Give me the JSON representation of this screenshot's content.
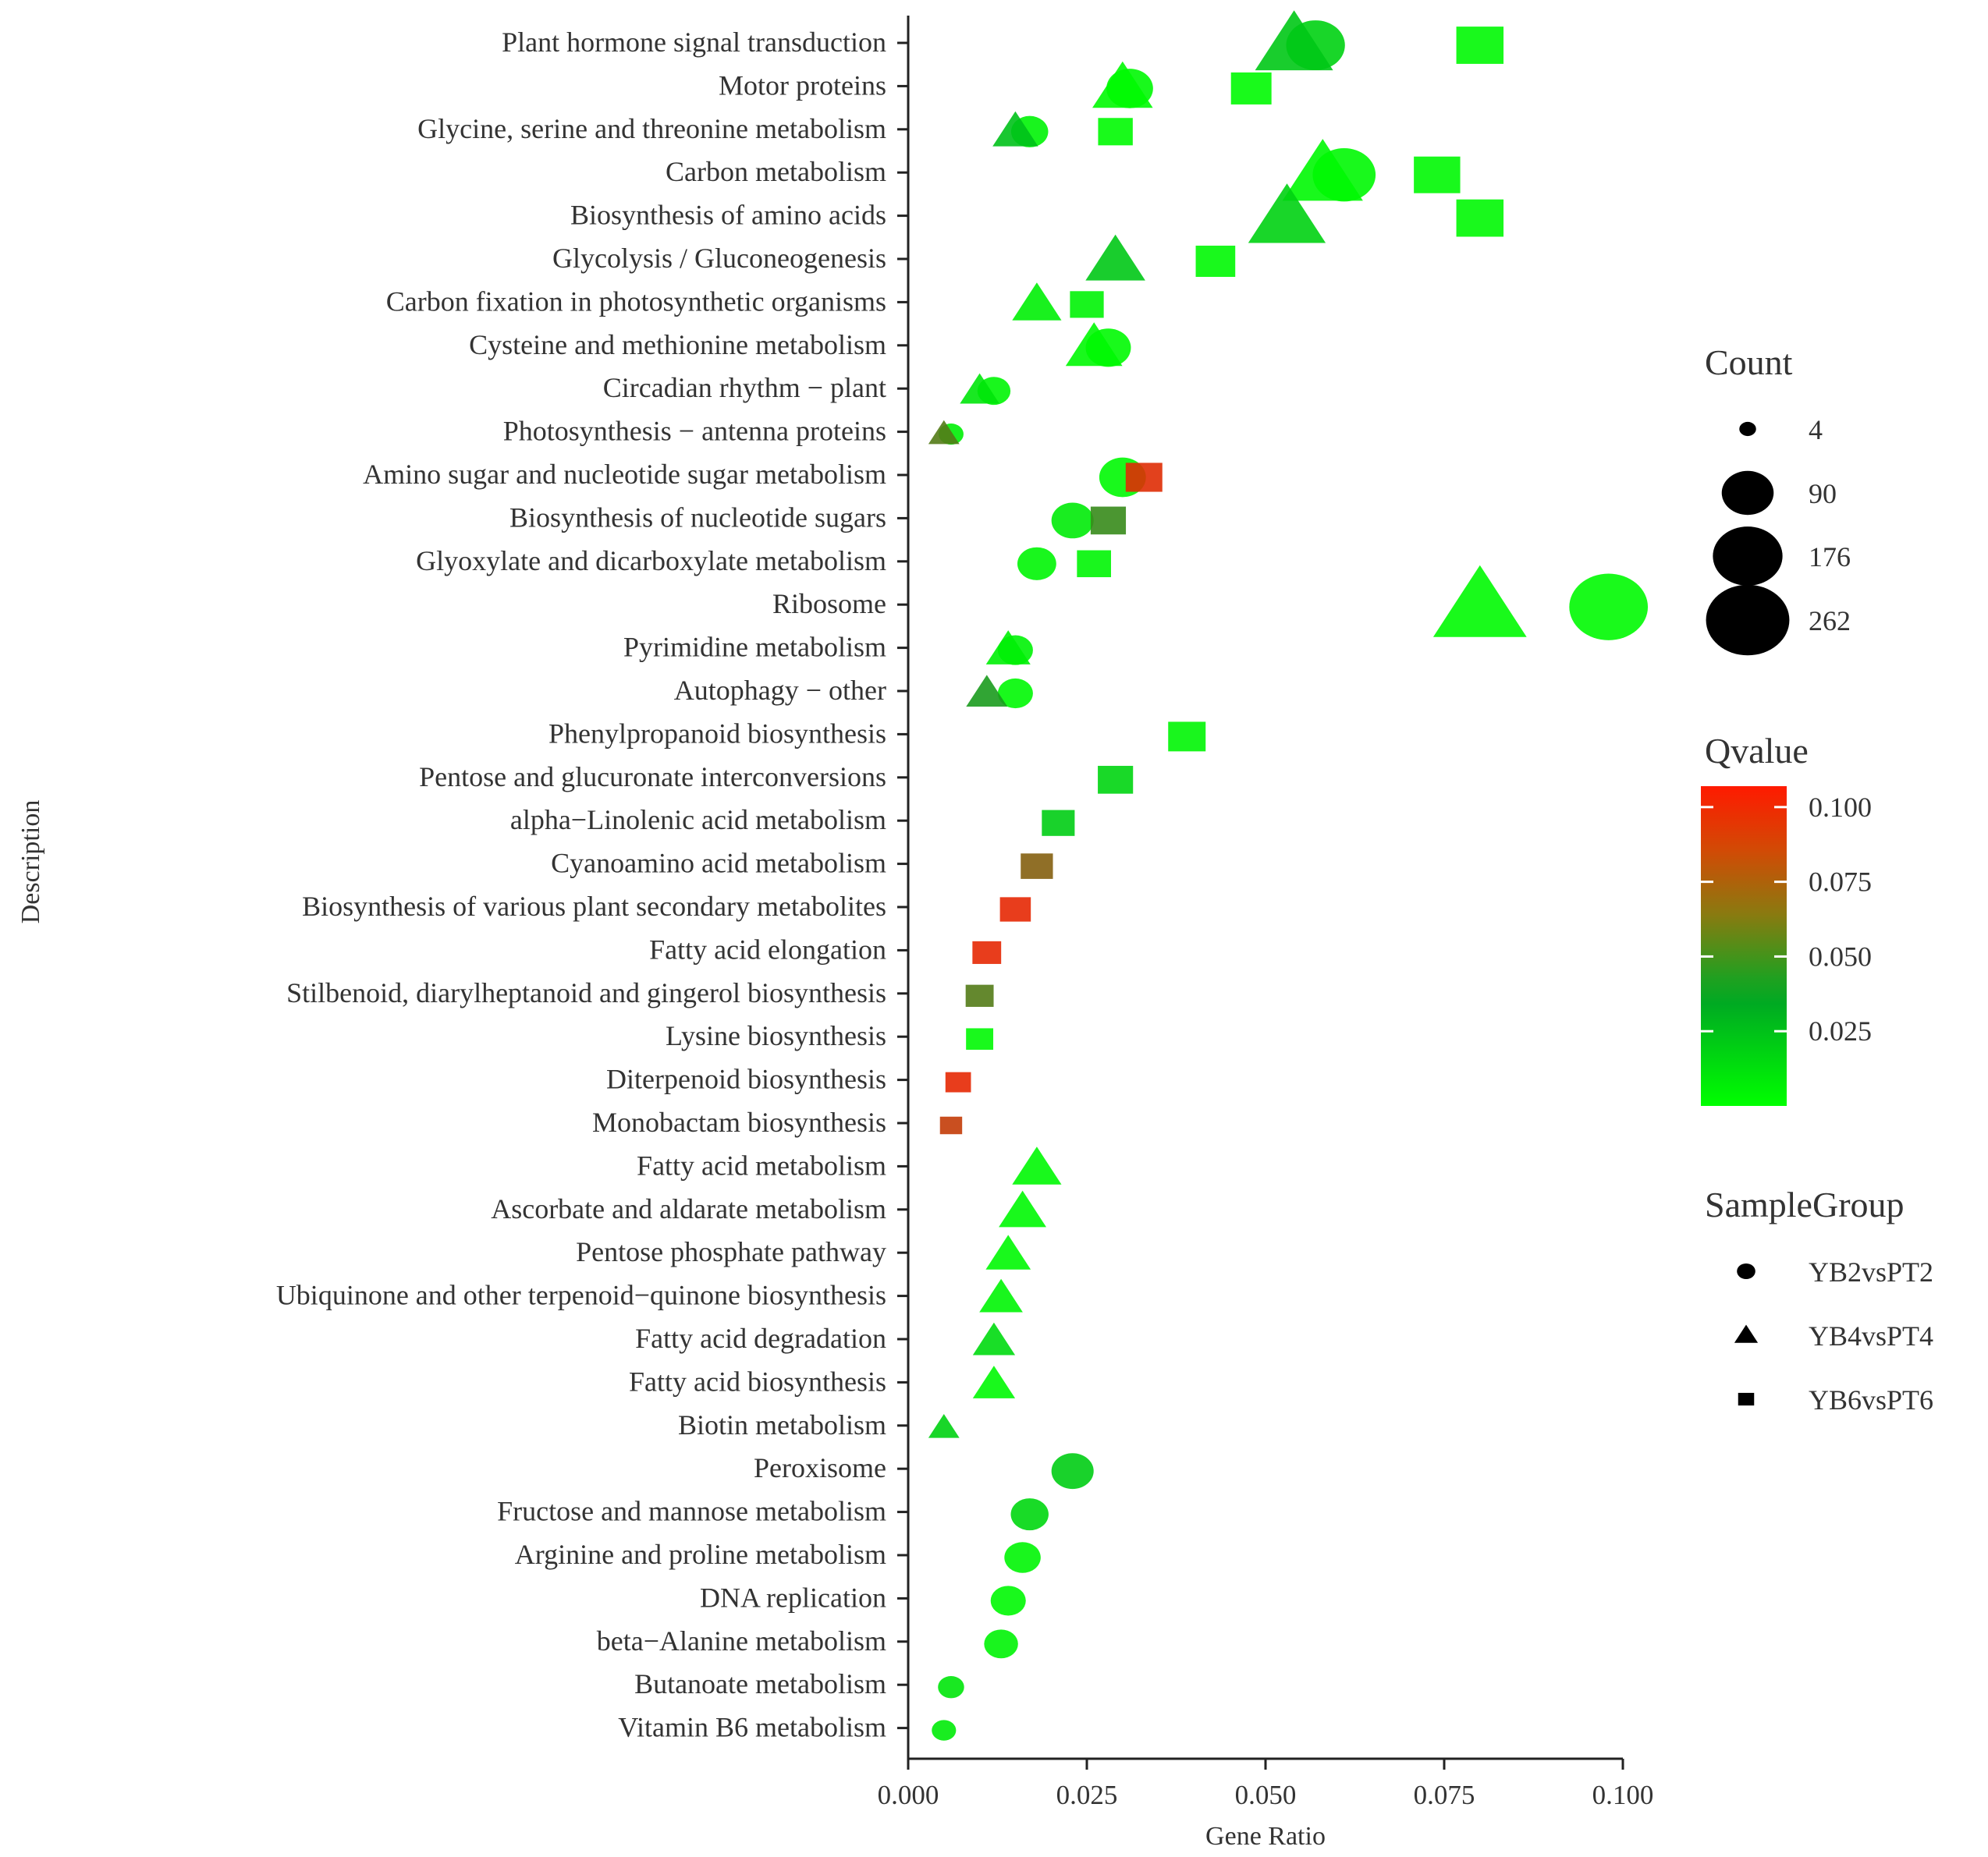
{
  "chart_data": {
    "type": "scatter",
    "title": "",
    "xlabel": "Gene Ratio",
    "ylabel": "Description",
    "xlim": [
      0.0,
      0.1
    ],
    "x_ticks": [
      0.0,
      0.025,
      0.05,
      0.075,
      0.1
    ],
    "x_tick_labels": [
      "0.000",
      "0.025",
      "0.050",
      "0.075",
      "0.100"
    ],
    "categories": [
      "Plant hormone signal transduction",
      "Motor proteins",
      "Glycine, serine and threonine metabolism",
      "Carbon metabolism",
      "Biosynthesis of amino acids",
      "Glycolysis / Gluconeogenesis",
      "Carbon fixation in photosynthetic organisms",
      "Cysteine and methionine metabolism",
      "Circadian rhythm − plant",
      "Photosynthesis − antenna proteins",
      "Amino sugar and nucleotide sugar metabolism",
      "Biosynthesis of nucleotide sugars",
      "Glyoxylate and dicarboxylate metabolism",
      "Ribosome",
      "Pyrimidine metabolism",
      "Autophagy − other",
      "Phenylpropanoid biosynthesis",
      "Pentose and glucuronate interconversions",
      "alpha−Linolenic acid metabolism",
      "Cyanoamino acid metabolism",
      "Biosynthesis of various plant secondary metabolites",
      "Fatty acid elongation",
      "Stilbenoid, diarylheptanoid and gingerol biosynthesis",
      "Lysine biosynthesis",
      "Diterpenoid biosynthesis",
      "Monobactam biosynthesis",
      "Fatty acid metabolism",
      "Ascorbate and aldarate metabolism",
      "Pentose phosphate pathway",
      "Ubiquinone and other terpenoid−quinone biosynthesis",
      "Fatty acid degradation",
      "Fatty acid biosynthesis",
      "Biotin metabolism",
      "Peroxisome",
      "Fructose and mannose metabolism",
      "Arginine and proline metabolism",
      "DNA replication",
      "beta−Alanine metabolism",
      "Butanoate metabolism",
      "Vitamin B6 metabolism"
    ],
    "series": [
      {
        "name": "YB2vsPT2",
        "shape": "circle",
        "points": [
          {
            "category": "Plant hormone signal transduction",
            "x": 0.057,
            "count": 120,
            "q": 0.018
          },
          {
            "category": "Motor proteins",
            "x": 0.031,
            "count": 70,
            "q": 0.003
          },
          {
            "category": "Glycine, serine and threonine metabolism",
            "x": 0.017,
            "count": 40,
            "q": 0.005
          },
          {
            "category": "Carbon metabolism",
            "x": 0.061,
            "count": 140,
            "q": 0.003
          },
          {
            "category": "Cysteine and methionine metabolism",
            "x": 0.028,
            "count": 65,
            "q": 0.002
          },
          {
            "category": "Circadian rhythm − plant",
            "x": 0.012,
            "count": 30,
            "q": 0.004
          },
          {
            "category": "Photosynthesis − antenna proteins",
            "x": 0.006,
            "count": 14,
            "q": 0.006
          },
          {
            "category": "Amino sugar and nucleotide sugar metabolism",
            "x": 0.03,
            "count": 70,
            "q": 0.003
          },
          {
            "category": "Biosynthesis of nucleotide sugars",
            "x": 0.023,
            "count": 55,
            "q": 0.008
          },
          {
            "category": "Glyoxylate and dicarboxylate metabolism",
            "x": 0.018,
            "count": 45,
            "q": 0.004
          },
          {
            "category": "Ribosome",
            "x": 0.098,
            "count": 230,
            "q": 0.002
          },
          {
            "category": "Pyrimidine metabolism",
            "x": 0.015,
            "count": 35,
            "q": 0.005
          },
          {
            "category": "Autophagy − other",
            "x": 0.015,
            "count": 35,
            "q": 0.003
          },
          {
            "category": "Peroxisome",
            "x": 0.023,
            "count": 55,
            "q": 0.02
          },
          {
            "category": "Fructose and mannose metabolism",
            "x": 0.017,
            "count": 42,
            "q": 0.016
          },
          {
            "category": "Arginine and proline metabolism",
            "x": 0.016,
            "count": 38,
            "q": 0.004
          },
          {
            "category": "DNA replication",
            "x": 0.014,
            "count": 35,
            "q": 0.003
          },
          {
            "category": "beta−Alanine metabolism",
            "x": 0.013,
            "count": 32,
            "q": 0.005
          },
          {
            "category": "Butanoate metabolism",
            "x": 0.006,
            "count": 16,
            "q": 0.01
          },
          {
            "category": "Vitamin B6 metabolism",
            "x": 0.005,
            "count": 13,
            "q": 0.008
          }
        ]
      },
      {
        "name": "YB4vsPT4",
        "shape": "triangle",
        "points": [
          {
            "category": "Plant hormone signal transduction",
            "x": 0.054,
            "count": 130,
            "q": 0.022
          },
          {
            "category": "Motor proteins",
            "x": 0.03,
            "count": 72,
            "q": 0.002
          },
          {
            "category": "Glycine, serine and threonine metabolism",
            "x": 0.015,
            "count": 36,
            "q": 0.025
          },
          {
            "category": "Carbon metabolism",
            "x": 0.058,
            "count": 140,
            "q": 0.003
          },
          {
            "category": "Biosynthesis of amino acids",
            "x": 0.053,
            "count": 128,
            "q": 0.018
          },
          {
            "category": "Glycolysis / Gluconeogenesis",
            "x": 0.029,
            "count": 70,
            "q": 0.022
          },
          {
            "category": "Carbon fixation in photosynthetic organisms",
            "x": 0.018,
            "count": 44,
            "q": 0.006
          },
          {
            "category": "Cysteine and methionine metabolism",
            "x": 0.026,
            "count": 62,
            "q": 0.003
          },
          {
            "category": "Circadian rhythm − plant",
            "x": 0.01,
            "count": 25,
            "q": 0.01
          },
          {
            "category": "Photosynthesis − antenna proteins",
            "x": 0.005,
            "count": 13,
            "q": 0.058
          },
          {
            "category": "Ribosome",
            "x": 0.08,
            "count": 195,
            "q": 0.002
          },
          {
            "category": "Pyrimidine metabolism",
            "x": 0.014,
            "count": 34,
            "q": 0.006
          },
          {
            "category": "Autophagy − other",
            "x": 0.011,
            "count": 28,
            "q": 0.042
          },
          {
            "category": "Fatty acid metabolism",
            "x": 0.018,
            "count": 44,
            "q": 0.003
          },
          {
            "category": "Ascorbate and aldarate metabolism",
            "x": 0.016,
            "count": 40,
            "q": 0.003
          },
          {
            "category": "Pentose phosphate pathway",
            "x": 0.014,
            "count": 35,
            "q": 0.003
          },
          {
            "category": "Ubiquinone and other terpenoid−quinone biosynthesis",
            "x": 0.013,
            "count": 32,
            "q": 0.004
          },
          {
            "category": "Fatty acid degradation",
            "x": 0.012,
            "count": 30,
            "q": 0.015
          },
          {
            "category": "Fatty acid biosynthesis",
            "x": 0.012,
            "count": 30,
            "q": 0.003
          },
          {
            "category": "Biotin metabolism",
            "x": 0.005,
            "count": 13,
            "q": 0.018
          }
        ]
      },
      {
        "name": "YB6vsPT6",
        "shape": "square",
        "points": [
          {
            "category": "Plant hormone signal transduction",
            "x": 0.08,
            "count": 100,
            "q": 0.003
          },
          {
            "category": "Motor proteins",
            "x": 0.048,
            "count": 70,
            "q": 0.002
          },
          {
            "category": "Glycine, serine and threonine metabolism",
            "x": 0.029,
            "count": 48,
            "q": 0.002
          },
          {
            "category": "Carbon metabolism",
            "x": 0.074,
            "count": 96,
            "q": 0.003
          },
          {
            "category": "Biosynthesis of amino acids",
            "x": 0.08,
            "count": 100,
            "q": 0.003
          },
          {
            "category": "Glycolysis / Gluconeogenesis",
            "x": 0.043,
            "count": 66,
            "q": 0.003
          },
          {
            "category": "Carbon fixation in photosynthetic organisms",
            "x": 0.025,
            "count": 45,
            "q": 0.005
          },
          {
            "category": "Amino sugar and nucleotide sugar metabolism",
            "x": 0.033,
            "count": 55,
            "q": 0.098
          },
          {
            "category": "Biosynthesis of nucleotide sugars",
            "x": 0.028,
            "count": 50,
            "q": 0.05
          },
          {
            "category": "Glyoxylate and dicarboxylate metabolism",
            "x": 0.026,
            "count": 46,
            "q": 0.004
          },
          {
            "category": "Phenylpropanoid biosynthesis",
            "x": 0.039,
            "count": 58,
            "q": 0.004
          },
          {
            "category": "Pentose and glucuronate interconversions",
            "x": 0.029,
            "count": 50,
            "q": 0.017
          },
          {
            "category": "alpha−Linolenic acid metabolism",
            "x": 0.021,
            "count": 42,
            "q": 0.02
          },
          {
            "category": "Cyanoamino acid metabolism",
            "x": 0.018,
            "count": 40,
            "q": 0.072
          },
          {
            "category": "Biosynthesis of various plant secondary metabolites",
            "x": 0.015,
            "count": 36,
            "q": 0.1
          },
          {
            "category": "Fatty acid elongation",
            "x": 0.011,
            "count": 30,
            "q": 0.1
          },
          {
            "category": "Stilbenoid, diarylheptanoid and gingerol biosynthesis",
            "x": 0.01,
            "count": 28,
            "q": 0.058
          },
          {
            "category": "Lysine biosynthesis",
            "x": 0.01,
            "count": 26,
            "q": 0.003
          },
          {
            "category": "Diterpenoid biosynthesis",
            "x": 0.007,
            "count": 22,
            "q": 0.1
          },
          {
            "category": "Monobactam biosynthesis",
            "x": 0.006,
            "count": 15,
            "q": 0.09
          }
        ]
      }
    ],
    "size_legend": {
      "title": "Count",
      "values": [
        4,
        90,
        176,
        262
      ],
      "labels": [
        "4",
        "90",
        "176",
        "262"
      ]
    },
    "color_legend": {
      "title": "Qvalue",
      "ticks": [
        0.1,
        0.075,
        0.05,
        0.025
      ],
      "labels": [
        "0.100",
        "0.075",
        "0.050",
        "0.025"
      ],
      "range": [
        0.0,
        0.107
      ],
      "colors": {
        "low": "#00ff00",
        "mid": "#00aa22",
        "high": "#ff1a00"
      }
    },
    "shape_legend": {
      "title": "SampleGroup",
      "entries": [
        {
          "label": "YB2vsPT2",
          "shape": "circle"
        },
        {
          "label": "YB4vsPT4",
          "shape": "triangle"
        },
        {
          "label": "YB6vsPT6",
          "shape": "square"
        }
      ]
    },
    "grid": false,
    "legend_position": "right"
  }
}
